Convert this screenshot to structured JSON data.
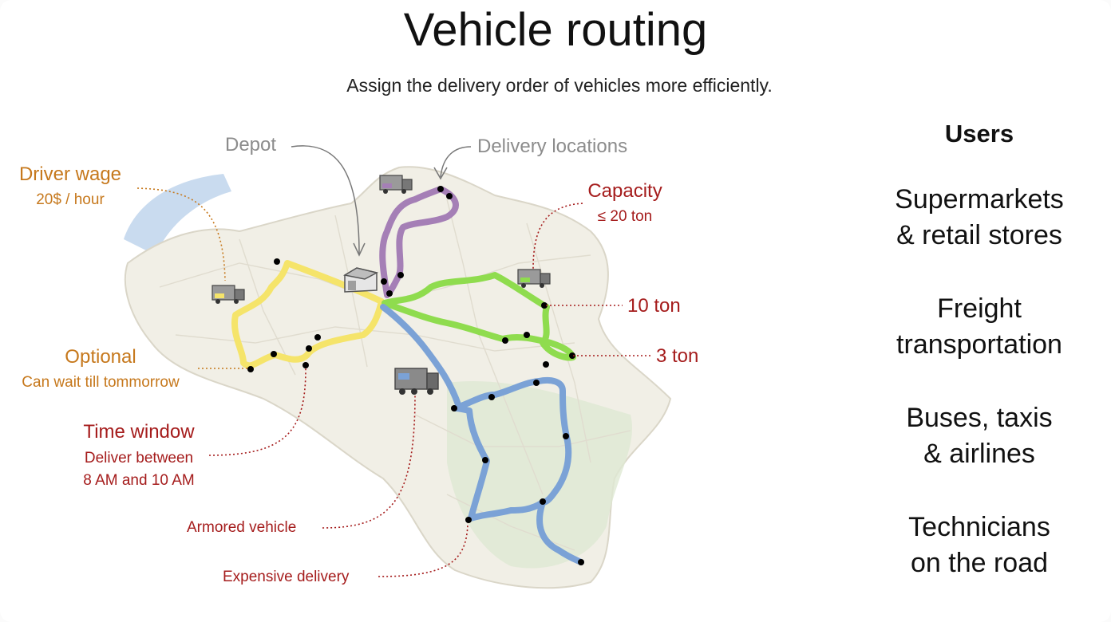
{
  "title": "Vehicle routing",
  "subtitle": "Assign the delivery order of vehicles more efficiently.",
  "users": {
    "heading": "Users",
    "items": [
      [
        "Supermarkets",
        "& retail stores"
      ],
      [
        "Freight",
        "transportation"
      ],
      [
        "Buses, taxis",
        "& airlines"
      ],
      [
        "Technicians",
        "on the road"
      ]
    ]
  },
  "annotations": {
    "depot": "Depot",
    "delivery_locations": "Delivery locations",
    "driver_wage": "Driver wage",
    "driver_wage_value": "20$ / hour",
    "capacity": "Capacity",
    "capacity_value": "≤ 20 ton",
    "ten_ton": "10 ton",
    "three_ton": "3 ton",
    "optional": "Optional",
    "optional_detail": "Can wait till tommorrow",
    "time_window": "Time window",
    "time_window_line1": "Deliver between",
    "time_window_line2": "8 AM and 10 AM",
    "armored_vehicle": "Armored vehicle",
    "expensive_delivery": "Expensive delivery"
  },
  "colors": {
    "route_purple": "#a57fb6",
    "route_yellow": "#f5e46a",
    "route_green": "#8fdc4e",
    "route_blue": "#7ba2d6",
    "annotation_orange": "#c6781c",
    "annotation_red": "#a51c1c",
    "annotation_gray": "#8c8c8c",
    "sea": "#c9dbef"
  }
}
